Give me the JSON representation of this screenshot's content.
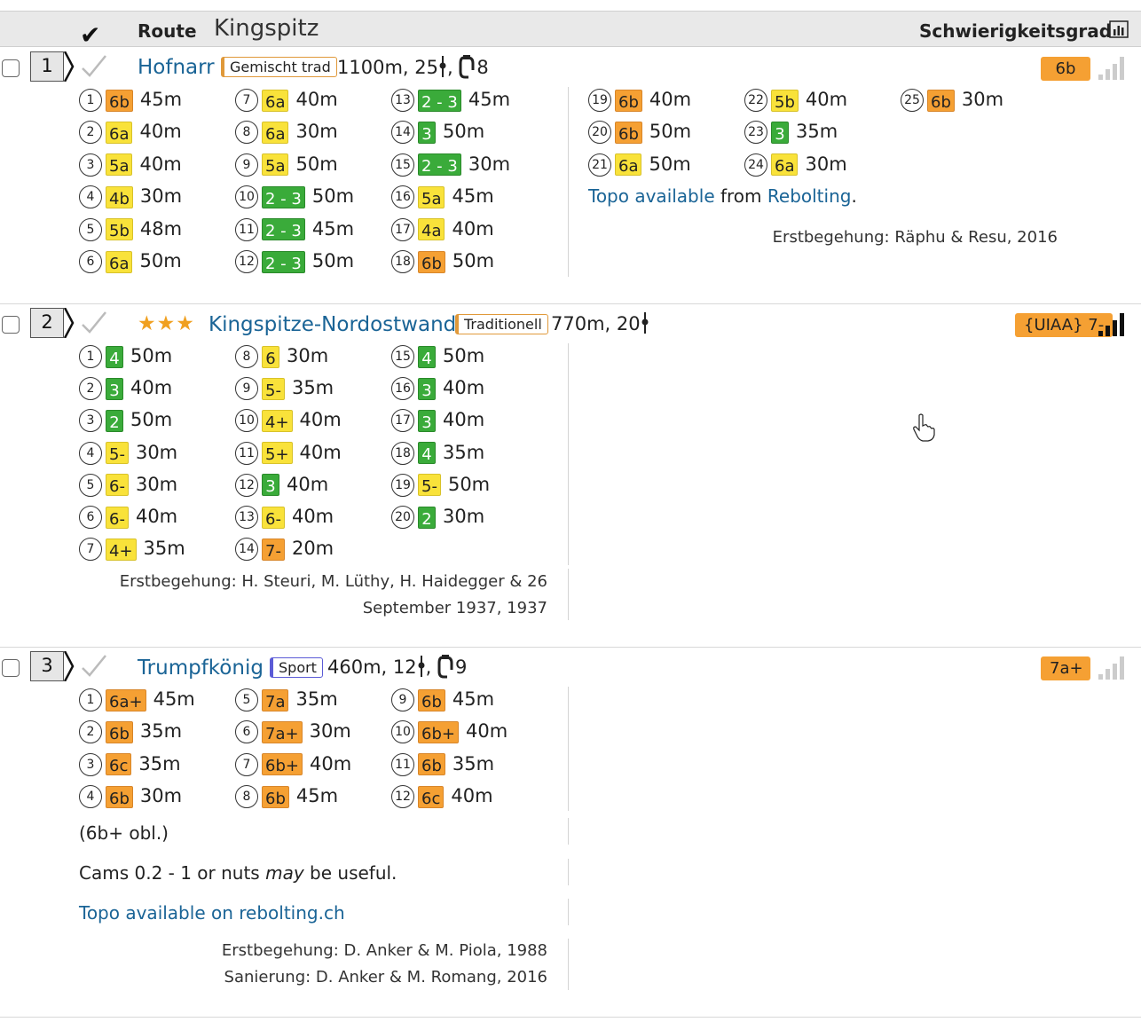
{
  "header": {
    "route_label": "Route",
    "crag_name": "Kingspitz",
    "grade_label": "Schwierigkeitsgrad"
  },
  "routes": [
    {
      "number": "1",
      "name": "Hofnarr",
      "stars": "",
      "style": "Gemischt trad",
      "length": "1100m, 25",
      "bolts": "8",
      "grade": "6b",
      "popularity_bars": 0,
      "pitches": [
        {
          "n": "1",
          "g": "6b",
          "len": "45m",
          "c": "o"
        },
        {
          "n": "2",
          "g": "6a",
          "len": "40m",
          "c": "y"
        },
        {
          "n": "3",
          "g": "5a",
          "len": "40m",
          "c": "y"
        },
        {
          "n": "4",
          "g": "4b",
          "len": "30m",
          "c": "y"
        },
        {
          "n": "5",
          "g": "5b",
          "len": "48m",
          "c": "y"
        },
        {
          "n": "6",
          "g": "6a",
          "len": "50m",
          "c": "y"
        },
        {
          "n": "7",
          "g": "6a",
          "len": "40m",
          "c": "y"
        },
        {
          "n": "8",
          "g": "6a",
          "len": "30m",
          "c": "y"
        },
        {
          "n": "9",
          "g": "5a",
          "len": "50m",
          "c": "y"
        },
        {
          "n": "10",
          "g": "2 - 3",
          "len": "50m",
          "c": "g"
        },
        {
          "n": "11",
          "g": "2 - 3",
          "len": "45m",
          "c": "g"
        },
        {
          "n": "12",
          "g": "2 - 3",
          "len": "50m",
          "c": "g"
        },
        {
          "n": "13",
          "g": "2 - 3",
          "len": "45m",
          "c": "g"
        },
        {
          "n": "14",
          "g": "3",
          "len": "50m",
          "c": "g"
        },
        {
          "n": "15",
          "g": "2 - 3",
          "len": "30m",
          "c": "g"
        },
        {
          "n": "16",
          "g": "5a",
          "len": "45m",
          "c": "y"
        },
        {
          "n": "17",
          "g": "4a",
          "len": "40m",
          "c": "y"
        },
        {
          "n": "18",
          "g": "6b",
          "len": "50m",
          "c": "o"
        },
        {
          "n": "19",
          "g": "6b",
          "len": "40m",
          "c": "o"
        },
        {
          "n": "20",
          "g": "6b",
          "len": "50m",
          "c": "o"
        },
        {
          "n": "21",
          "g": "6a",
          "len": "50m",
          "c": "y"
        },
        {
          "n": "22",
          "g": "5b",
          "len": "40m",
          "c": "y"
        },
        {
          "n": "23",
          "g": "3",
          "len": "35m",
          "c": "g"
        },
        {
          "n": "24",
          "g": "6a",
          "len": "30m",
          "c": "y"
        },
        {
          "n": "25",
          "g": "6b",
          "len": "30m",
          "c": "o"
        }
      ],
      "topo_link": "Topo available",
      "topo_mid": " from ",
      "topo_source": "Rebolting",
      "topo_end": ".",
      "first_ascent": "Erstbegehung: Räphu & Resu, 2016"
    },
    {
      "number": "2",
      "name": "Kingspitze-Nordostwand",
      "stars": "★★★",
      "style": "Traditionell",
      "length": "770m, 20",
      "grade": "{UIAA} 7-",
      "popularity_bars": 4,
      "pitches": [
        {
          "n": "1",
          "g": "4",
          "len": "50m",
          "c": "g"
        },
        {
          "n": "2",
          "g": "3",
          "len": "40m",
          "c": "g"
        },
        {
          "n": "3",
          "g": "2",
          "len": "50m",
          "c": "g"
        },
        {
          "n": "4",
          "g": "5-",
          "len": "30m",
          "c": "y"
        },
        {
          "n": "5",
          "g": "6-",
          "len": "30m",
          "c": "y"
        },
        {
          "n": "6",
          "g": "6-",
          "len": "40m",
          "c": "y"
        },
        {
          "n": "7",
          "g": "4+",
          "len": "35m",
          "c": "y"
        },
        {
          "n": "8",
          "g": "6",
          "len": "30m",
          "c": "y"
        },
        {
          "n": "9",
          "g": "5-",
          "len": "35m",
          "c": "y"
        },
        {
          "n": "10",
          "g": "4+",
          "len": "40m",
          "c": "y"
        },
        {
          "n": "11",
          "g": "5+",
          "len": "40m",
          "c": "y"
        },
        {
          "n": "12",
          "g": "3",
          "len": "40m",
          "c": "g"
        },
        {
          "n": "13",
          "g": "6-",
          "len": "40m",
          "c": "y"
        },
        {
          "n": "14",
          "g": "7-",
          "len": "20m",
          "c": "o"
        },
        {
          "n": "15",
          "g": "4",
          "len": "50m",
          "c": "g"
        },
        {
          "n": "16",
          "g": "3",
          "len": "40m",
          "c": "g"
        },
        {
          "n": "17",
          "g": "3",
          "len": "40m",
          "c": "g"
        },
        {
          "n": "18",
          "g": "4",
          "len": "35m",
          "c": "g"
        },
        {
          "n": "19",
          "g": "5-",
          "len": "50m",
          "c": "y"
        },
        {
          "n": "20",
          "g": "2",
          "len": "30m",
          "c": "g"
        }
      ],
      "first_ascent_line1": "Erstbegehung: H. Steuri, M. Lüthy, H. Haidegger & 26",
      "first_ascent_line2": "September 1937, 1937"
    },
    {
      "number": "3",
      "name": "Trumpfkönig",
      "stars": "",
      "style": "Sport",
      "length": "460m, 12",
      "bolts": "9",
      "grade": "7a+",
      "popularity_bars": 0,
      "pitches": [
        {
          "n": "1",
          "g": "6a+",
          "len": "45m",
          "c": "o"
        },
        {
          "n": "2",
          "g": "6b",
          "len": "35m",
          "c": "o"
        },
        {
          "n": "3",
          "g": "6c",
          "len": "35m",
          "c": "o"
        },
        {
          "n": "4",
          "g": "6b",
          "len": "30m",
          "c": "o"
        },
        {
          "n": "5",
          "g": "7a",
          "len": "35m",
          "c": "o"
        },
        {
          "n": "6",
          "g": "7a+",
          "len": "30m",
          "c": "o"
        },
        {
          "n": "7",
          "g": "6b+",
          "len": "40m",
          "c": "o"
        },
        {
          "n": "8",
          "g": "6b",
          "len": "45m",
          "c": "o"
        },
        {
          "n": "9",
          "g": "6b",
          "len": "45m",
          "c": "o"
        },
        {
          "n": "10",
          "g": "6b+",
          "len": "40m",
          "c": "o"
        },
        {
          "n": "11",
          "g": "6b",
          "len": "35m",
          "c": "o"
        },
        {
          "n": "12",
          "g": "6c",
          "len": "40m",
          "c": "o"
        }
      ],
      "obligatory": "(6b+ obl.)",
      "gear_pre": "Cams 0.2 - 1 or nuts ",
      "gear_em": "may",
      "gear_post": " be useful.",
      "topo_link": "Topo available on rebolting.ch",
      "first_ascent": "Erstbegehung: D. Anker & M. Piola, 1988",
      "renovation": "Sanierung: D. Anker & M. Romang, 2016"
    }
  ],
  "colors": {
    "yellow": "#f9e23a",
    "orange": "#f5a033",
    "green": "#3aab3a",
    "link": "#1a6496"
  }
}
